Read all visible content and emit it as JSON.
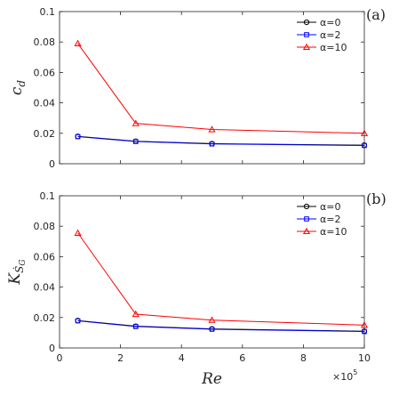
{
  "chart_data": [
    {
      "type": "line",
      "panel_label": "(a)",
      "ylabel": "c_d",
      "ylabel_base": "c",
      "ylabel_sub": "d",
      "xlabel": "",
      "x": [
        60000,
        250000,
        500000,
        1000000
      ],
      "xlim": [
        0,
        1000000
      ],
      "ylim": [
        0,
        0.1
      ],
      "xticks": [
        0,
        200000,
        400000,
        600000,
        800000,
        1000000
      ],
      "xtick_labels": [],
      "yticks": [
        0,
        0.02,
        0.04,
        0.06,
        0.08,
        0.1
      ],
      "ytick_labels": [
        "0",
        "0.02",
        "0.04",
        "0.06",
        "0.08",
        "0.1"
      ],
      "legend_position": "top-right",
      "grid": false,
      "series": [
        {
          "name": "α=0",
          "values": [
            0.018,
            0.0148,
            0.0132,
            0.0122
          ],
          "color": "#000000",
          "marker": "circle"
        },
        {
          "name": "α=2",
          "values": [
            0.0178,
            0.0146,
            0.013,
            0.012
          ],
          "color": "#0000ff",
          "marker": "square"
        },
        {
          "name": "α=10",
          "values": [
            0.079,
            0.0265,
            0.0225,
            0.02
          ],
          "color": "#ff0000",
          "marker": "triangle"
        }
      ]
    },
    {
      "type": "line",
      "panel_label": "(b)",
      "ylabel": "K_Ṡ_G",
      "ylabel_base": "K",
      "ylabel_sub": "Ṡ",
      "ylabel_subsub": "G",
      "xlabel": "Re",
      "x_exponent_label": "×10",
      "x_exponent_power": "5",
      "x": [
        60000,
        250000,
        500000,
        1000000
      ],
      "xlim": [
        0,
        1000000
      ],
      "ylim": [
        0,
        0.1
      ],
      "xticks": [
        0,
        200000,
        400000,
        600000,
        800000,
        1000000
      ],
      "xtick_labels": [
        "0",
        "2",
        "4",
        "6",
        "8",
        "10"
      ],
      "yticks": [
        0,
        0.02,
        0.04,
        0.06,
        0.08,
        0.1
      ],
      "ytick_labels": [
        "0",
        "0.02",
        "0.04",
        "0.06",
        "0.08",
        "0.1"
      ],
      "legend_position": "top-right",
      "grid": false,
      "series": [
        {
          "name": "α=0",
          "values": [
            0.018,
            0.0143,
            0.0125,
            0.011
          ],
          "color": "#000000",
          "marker": "circle"
        },
        {
          "name": "α=2",
          "values": [
            0.0178,
            0.0141,
            0.0123,
            0.0108
          ],
          "color": "#0000ff",
          "marker": "square"
        },
        {
          "name": "α=10",
          "values": [
            0.0755,
            0.0222,
            0.0183,
            0.015
          ],
          "color": "#ff0000",
          "marker": "triangle"
        }
      ]
    }
  ]
}
